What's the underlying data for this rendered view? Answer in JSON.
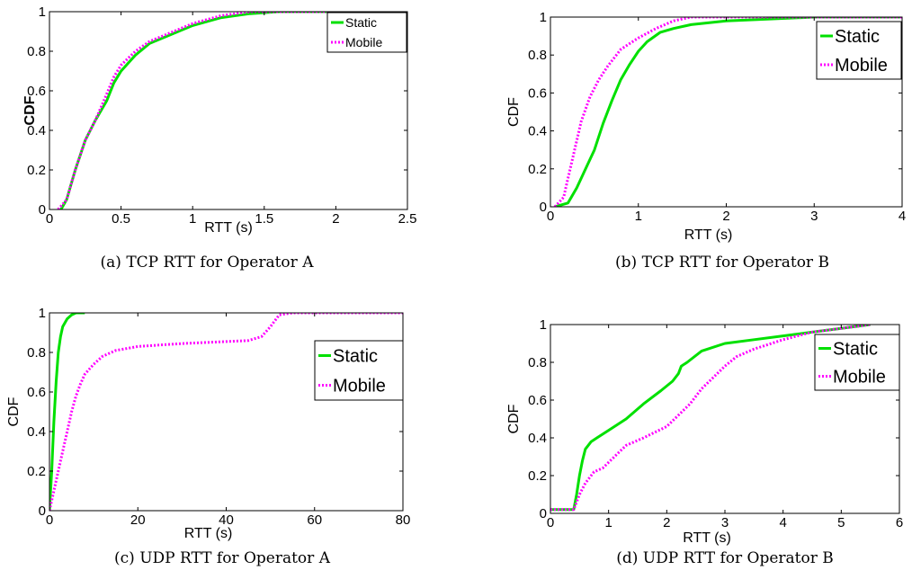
{
  "chart_data": [
    {
      "type": "line",
      "caption": "(a) TCP RTT for Operator A",
      "xlabel": "RTT (s)",
      "ylabel": "CDF",
      "xlim": [
        0,
        2.5
      ],
      "ylim": [
        0,
        1
      ],
      "xticks": [
        0,
        0.5,
        1,
        1.5,
        2,
        2.5
      ],
      "xtick_labels": [
        "0",
        "0.5",
        "1",
        "1.5",
        "2",
        "2.5"
      ],
      "yticks": [
        0,
        0.2,
        0.4,
        0.6,
        0.8,
        1
      ],
      "ytick_labels": [
        "0",
        "0.2",
        "0.4",
        "0.6",
        "0.8",
        "1"
      ],
      "legend": "top-right",
      "series": [
        {
          "name": "Static",
          "color": "#00e000",
          "style": "solid",
          "x": [
            0.08,
            0.12,
            0.18,
            0.25,
            0.32,
            0.4,
            0.45,
            0.5,
            0.6,
            0.7,
            0.8,
            0.9,
            1.0,
            1.2,
            1.4,
            1.6,
            2.0,
            2.3
          ],
          "y": [
            0,
            0.05,
            0.2,
            0.35,
            0.45,
            0.55,
            0.64,
            0.7,
            0.78,
            0.84,
            0.87,
            0.9,
            0.93,
            0.97,
            0.99,
            1.0,
            1.0,
            1.0
          ]
        },
        {
          "name": "Mobile",
          "color": "#ff00ff",
          "style": "dotted",
          "x": [
            0.06,
            0.12,
            0.18,
            0.25,
            0.32,
            0.38,
            0.45,
            0.5,
            0.6,
            0.7,
            0.8,
            0.9,
            1.0,
            1.2,
            1.4,
            1.6,
            2.0,
            2.3
          ],
          "y": [
            0,
            0.05,
            0.2,
            0.35,
            0.45,
            0.55,
            0.67,
            0.73,
            0.8,
            0.85,
            0.88,
            0.91,
            0.94,
            0.98,
            1.0,
            1.0,
            1.0,
            1.0
          ]
        }
      ]
    },
    {
      "type": "line",
      "caption": "(b) TCP RTT for Operator B",
      "xlabel": "RTT (s)",
      "ylabel": "CDF",
      "xlim": [
        0,
        4
      ],
      "ylim": [
        0,
        1
      ],
      "xticks": [
        0,
        1,
        2,
        3,
        4
      ],
      "xtick_labels": [
        "0",
        "1",
        "2",
        "3",
        "4"
      ],
      "yticks": [
        0,
        0.2,
        0.4,
        0.6,
        0.8,
        1
      ],
      "ytick_labels": [
        "0",
        "0.2",
        "0.4",
        "0.6",
        "0.8",
        "1"
      ],
      "legend": "top-right",
      "series": [
        {
          "name": "Static",
          "color": "#00e000",
          "style": "solid",
          "x": [
            0.05,
            0.2,
            0.3,
            0.4,
            0.5,
            0.6,
            0.7,
            0.8,
            0.9,
            1.0,
            1.1,
            1.25,
            1.4,
            1.6,
            2.0,
            2.5,
            3.0,
            4.0
          ],
          "y": [
            0,
            0.02,
            0.1,
            0.2,
            0.3,
            0.44,
            0.56,
            0.67,
            0.75,
            0.82,
            0.87,
            0.92,
            0.94,
            0.96,
            0.98,
            0.99,
            1.0,
            1.0
          ]
        },
        {
          "name": "Mobile",
          "color": "#ff00ff",
          "style": "dotted",
          "x": [
            0.05,
            0.15,
            0.2,
            0.25,
            0.3,
            0.35,
            0.45,
            0.55,
            0.65,
            0.8,
            0.9,
            1.0,
            1.2,
            1.4,
            1.6,
            2.0,
            4.0
          ],
          "y": [
            0,
            0.05,
            0.15,
            0.25,
            0.35,
            0.45,
            0.58,
            0.67,
            0.74,
            0.83,
            0.86,
            0.89,
            0.94,
            0.98,
            1.0,
            1.0,
            1.0
          ]
        }
      ]
    },
    {
      "type": "line",
      "caption": "(c) UDP RTT for Operator A",
      "xlabel": "RTT (s)",
      "ylabel": "CDF",
      "xlim": [
        0,
        80
      ],
      "ylim": [
        0,
        1
      ],
      "xticks": [
        0,
        20,
        40,
        60,
        80
      ],
      "xtick_labels": [
        "0",
        "20",
        "40",
        "60",
        "80"
      ],
      "yticks": [
        0,
        0.2,
        0.4,
        0.6,
        0.8,
        1
      ],
      "ytick_labels": [
        "0",
        "0.2",
        "0.4",
        "0.6",
        "0.8",
        "1"
      ],
      "legend": "top-right",
      "series": [
        {
          "name": "Static",
          "color": "#00e000",
          "style": "solid",
          "x": [
            0,
            0.5,
            1,
            1.5,
            2,
            2.5,
            3,
            4,
            5,
            6,
            8
          ],
          "y": [
            0,
            0.2,
            0.45,
            0.65,
            0.8,
            0.88,
            0.93,
            0.97,
            0.99,
            1.0,
            1.0
          ]
        },
        {
          "name": "Mobile",
          "color": "#ff00ff",
          "style": "dotted",
          "x": [
            0,
            1,
            2,
            3,
            4,
            5,
            6,
            7,
            8,
            10,
            12,
            15,
            20,
            30,
            40,
            45,
            48,
            50,
            52,
            55,
            60,
            80
          ],
          "y": [
            0,
            0.1,
            0.2,
            0.3,
            0.4,
            0.5,
            0.58,
            0.64,
            0.69,
            0.74,
            0.78,
            0.81,
            0.83,
            0.845,
            0.855,
            0.86,
            0.88,
            0.93,
            0.99,
            1.0,
            1.0,
            1.0
          ]
        }
      ]
    },
    {
      "type": "line",
      "caption": "(d) UDP RTT for Operator B",
      "xlabel": "RTT (s)",
      "ylabel": "CDF",
      "xlim": [
        0,
        6
      ],
      "ylim": [
        0,
        1
      ],
      "xticks": [
        0,
        1,
        2,
        3,
        4,
        5,
        6
      ],
      "xtick_labels": [
        "0",
        "1",
        "2",
        "3",
        "4",
        "5",
        "6"
      ],
      "yticks": [
        0,
        0.2,
        0.4,
        0.6,
        0.8,
        1
      ],
      "ytick_labels": [
        "0",
        "0.2",
        "0.4",
        "0.6",
        "0.8",
        "1"
      ],
      "legend": "top-right",
      "series": [
        {
          "name": "Static",
          "color": "#00e000",
          "style": "solid",
          "x": [
            0,
            0.4,
            0.45,
            0.5,
            0.55,
            0.6,
            0.7,
            0.8,
            1.0,
            1.3,
            1.6,
            1.9,
            2.1,
            2.2,
            2.25,
            2.35,
            2.6,
            3.0,
            3.5,
            4.0,
            4.5,
            5.0,
            5.5
          ],
          "y": [
            0.02,
            0.02,
            0.1,
            0.2,
            0.28,
            0.34,
            0.38,
            0.4,
            0.44,
            0.5,
            0.58,
            0.65,
            0.7,
            0.74,
            0.78,
            0.8,
            0.86,
            0.9,
            0.92,
            0.94,
            0.96,
            0.98,
            1.0
          ]
        },
        {
          "name": "Mobile",
          "color": "#ff00ff",
          "style": "dotted",
          "x": [
            0,
            0.4,
            0.5,
            0.6,
            0.75,
            0.9,
            1.1,
            1.3,
            1.6,
            2.0,
            2.2,
            2.4,
            2.6,
            2.8,
            3.0,
            3.2,
            3.5,
            4.0,
            4.5,
            5.0,
            5.5
          ],
          "y": [
            0.02,
            0.02,
            0.1,
            0.16,
            0.22,
            0.24,
            0.3,
            0.36,
            0.4,
            0.46,
            0.52,
            0.58,
            0.66,
            0.72,
            0.78,
            0.83,
            0.87,
            0.92,
            0.96,
            0.98,
            1.0
          ]
        }
      ]
    }
  ]
}
